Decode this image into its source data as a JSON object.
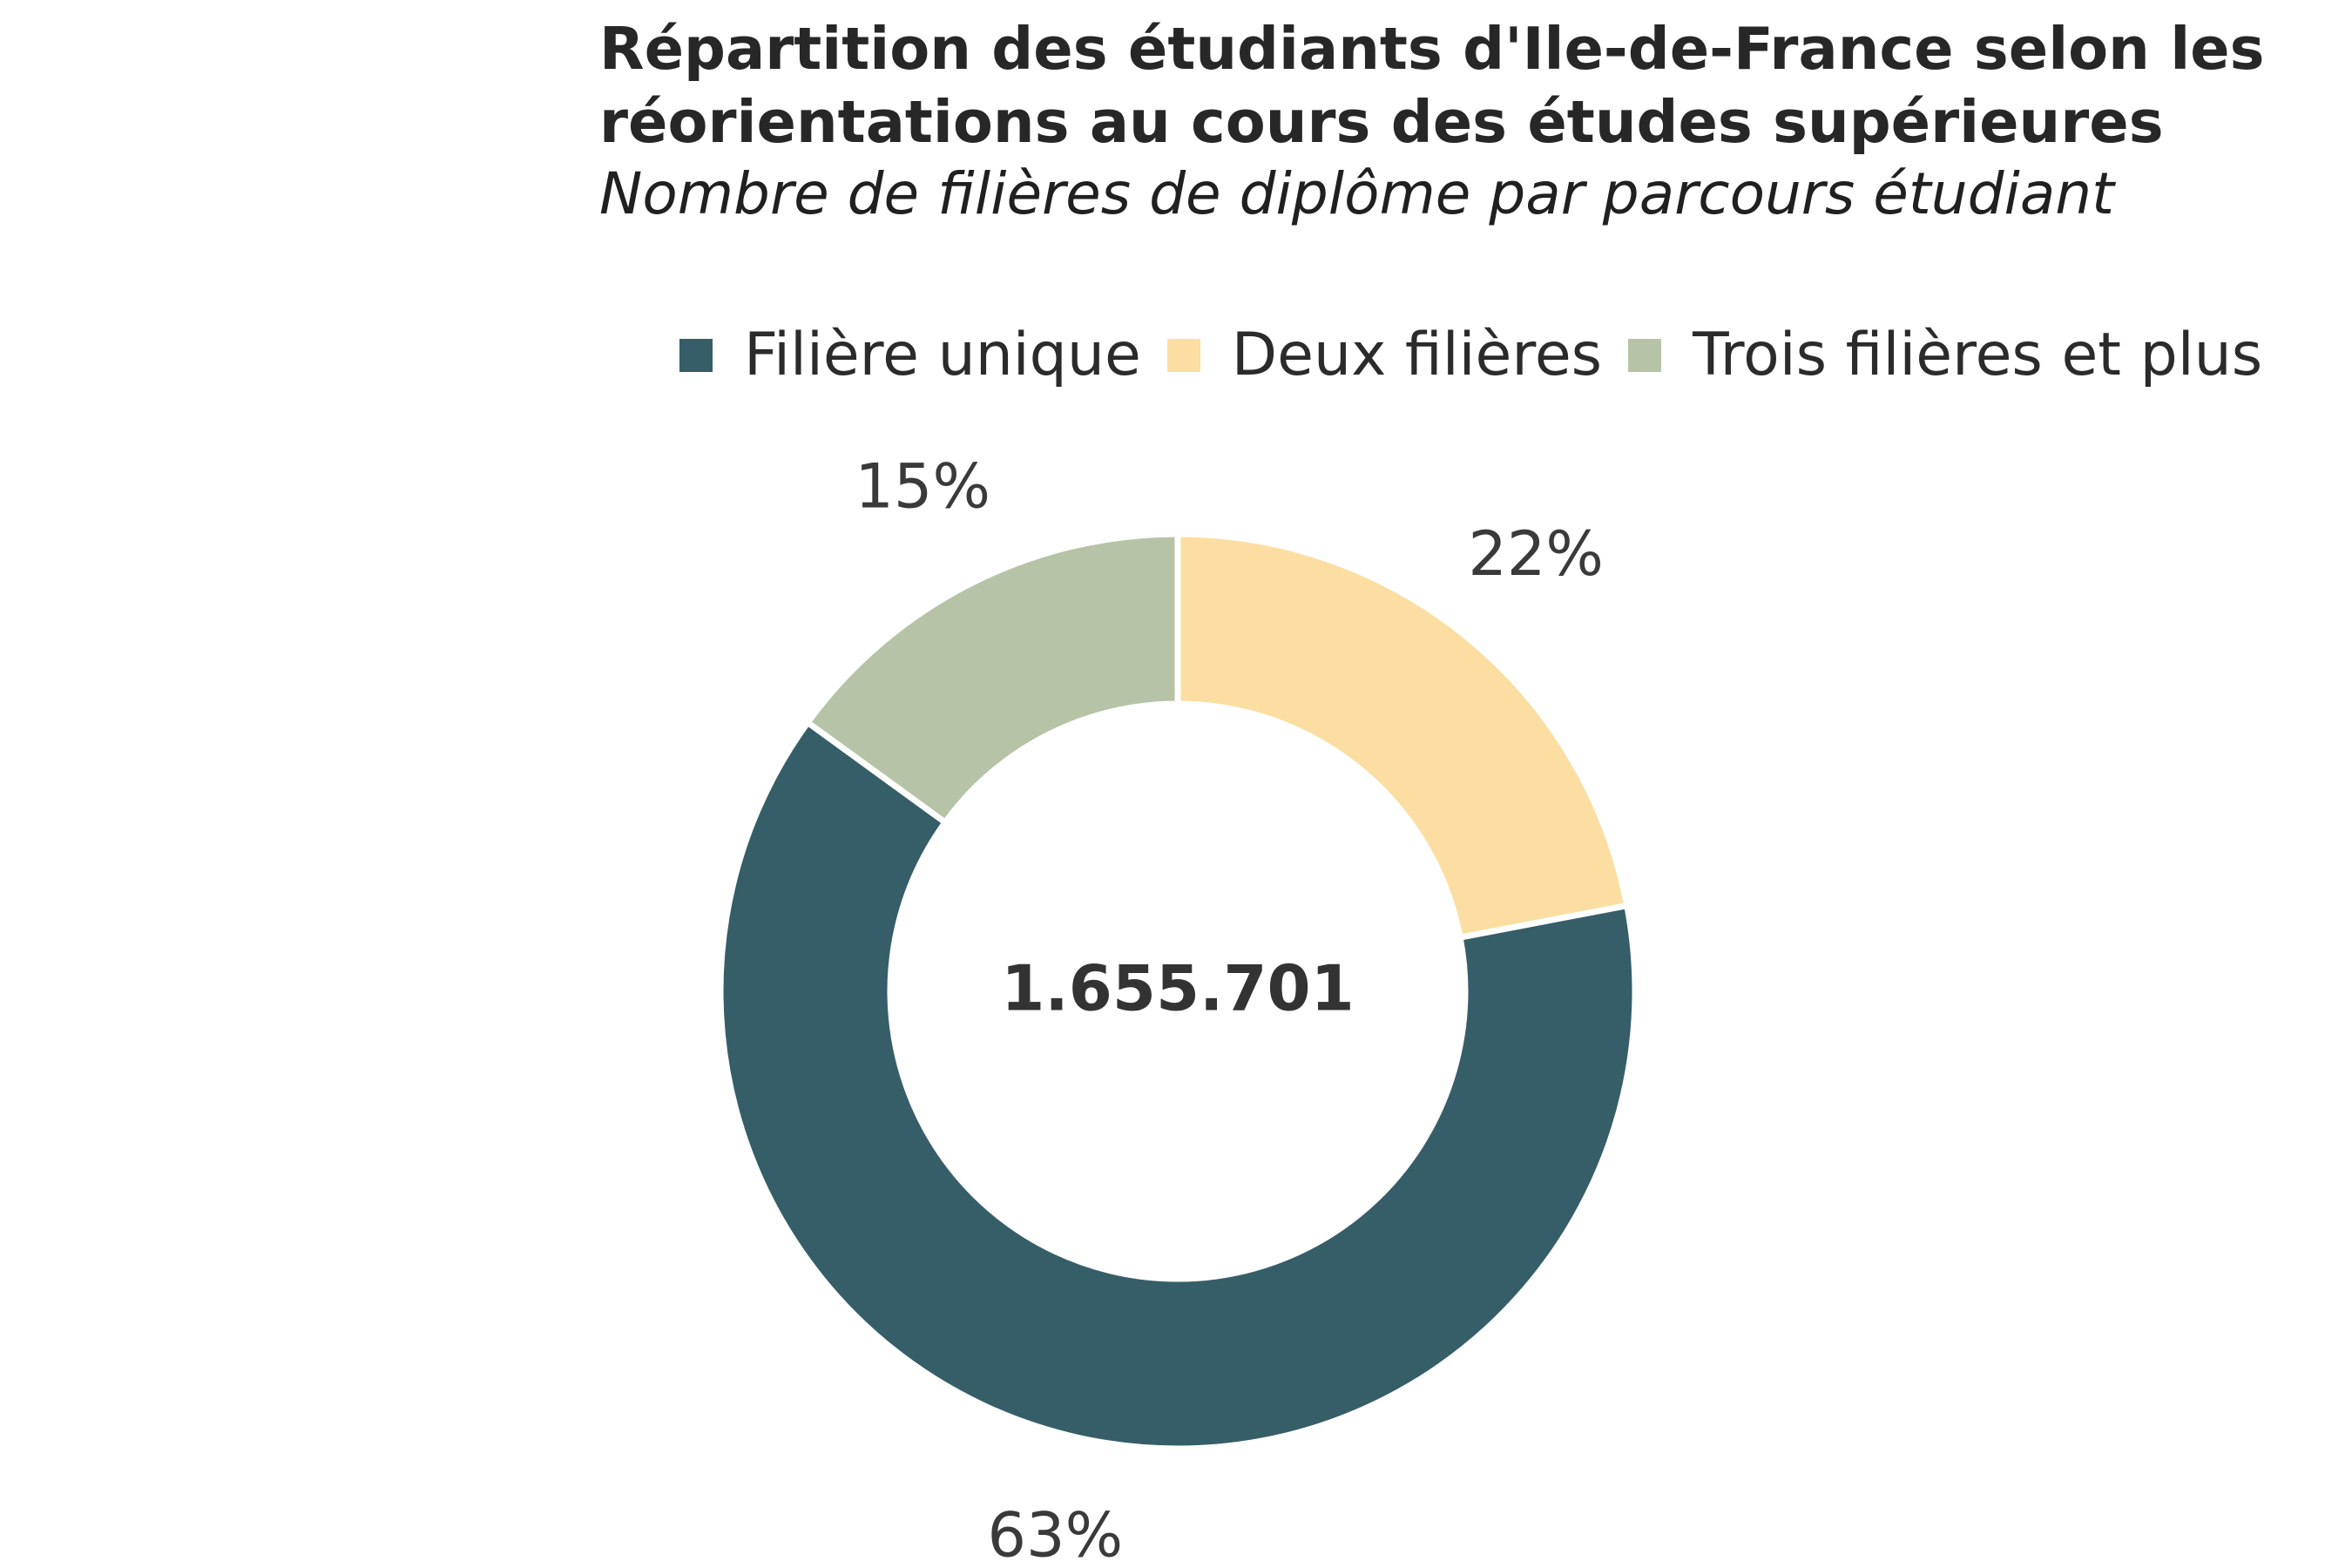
{
  "chart_data": {
    "type": "pie",
    "title_lines": [
      "Répartition des étudiants d'Ile-de-France selon les",
      "réorientations au cours des études supérieures"
    ],
    "subtitle": "Nombre de filières de diplôme par parcours étudiant",
    "center_label": "1.655.701",
    "legend_position": "top",
    "hole": true,
    "slices": [
      {
        "name": "Deux filières",
        "value": 22,
        "label": "22%",
        "color": "#fcdea2"
      },
      {
        "name": "Filière unique",
        "value": 63,
        "label": "63%",
        "color": "#365e69"
      },
      {
        "name": "Trois filières et plus",
        "value": 15,
        "label": "15%",
        "color": "#b7c3a6"
      }
    ],
    "legend": [
      {
        "name": "Filière unique",
        "color": "#365e69"
      },
      {
        "name": "Deux filières",
        "color": "#fcdea2"
      },
      {
        "name": "Trois filières et plus",
        "color": "#b7c3a6"
      }
    ]
  }
}
